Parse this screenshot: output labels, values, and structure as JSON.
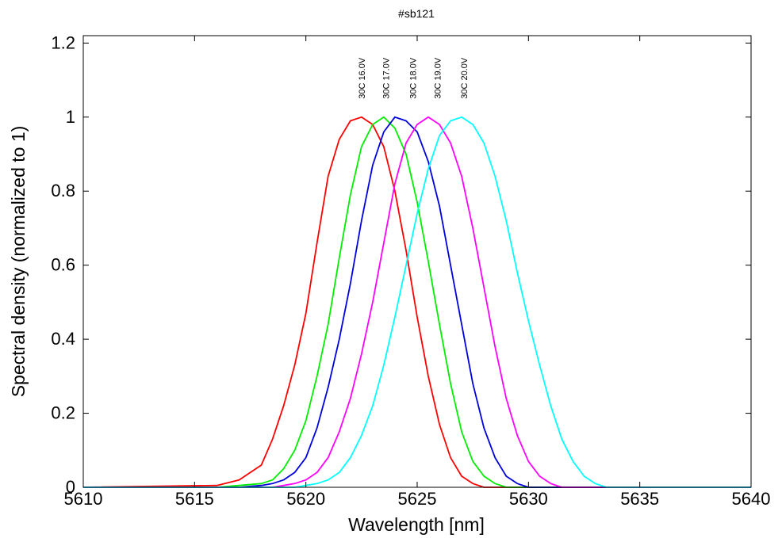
{
  "chart_data": {
    "type": "line",
    "title": "#sb121",
    "xlabel": "Wavelength [nm]",
    "ylabel": "Spectral density (normalized to 1)",
    "xlim": [
      5610,
      5640
    ],
    "ylim": [
      0,
      1.22
    ],
    "xticks": [
      5610,
      5615,
      5620,
      5625,
      5630,
      5635,
      5640
    ],
    "xtick_labels": [
      "5610",
      "5615",
      "5620",
      "5625",
      "5630",
      "5635",
      "5640"
    ],
    "yticks": [
      0,
      0.2,
      0.4,
      0.6,
      0.8,
      1,
      1.2
    ],
    "ytick_labels": [
      "0",
      "0.2",
      "0.4",
      "0.6",
      "0.8",
      "1",
      "1.2"
    ],
    "grid": false,
    "legend": "none",
    "x": [
      5610,
      5616,
      5617,
      5618,
      5618.5,
      5619,
      5619.5,
      5620,
      5620.5,
      5621,
      5621.5,
      5622,
      5622.5,
      5623,
      5623.5,
      5624,
      5624.5,
      5625,
      5625.5,
      5626,
      5626.5,
      5627,
      5627.5,
      5628,
      5628.5,
      5629,
      5629.5,
      5630,
      5630.5,
      5631,
      5631.5,
      5632,
      5632.5,
      5633,
      5633.5,
      5634,
      5640
    ],
    "series": [
      {
        "name": "30C 16.0V",
        "color": "#ff0000",
        "label_x": 5622.5,
        "values": [
          0,
          0.005,
          0.02,
          0.06,
          0.13,
          0.22,
          0.33,
          0.47,
          0.66,
          0.84,
          0.94,
          0.99,
          1.0,
          0.98,
          0.92,
          0.8,
          0.64,
          0.46,
          0.3,
          0.17,
          0.08,
          0.03,
          0.01,
          0,
          0,
          0,
          0,
          0,
          0,
          0,
          0,
          0,
          0,
          0,
          0,
          0,
          0
        ]
      },
      {
        "name": "30C 17.0V",
        "color": "#00ee00",
        "label_x": 5623.6,
        "values": [
          0,
          0,
          0.005,
          0.01,
          0.02,
          0.05,
          0.1,
          0.18,
          0.3,
          0.44,
          0.62,
          0.79,
          0.92,
          0.98,
          1.0,
          0.97,
          0.9,
          0.77,
          0.61,
          0.44,
          0.28,
          0.15,
          0.07,
          0.03,
          0.01,
          0,
          0,
          0,
          0,
          0,
          0,
          0,
          0,
          0,
          0,
          0,
          0
        ]
      },
      {
        "name": "30C 18.0V",
        "color": "#0000dd",
        "label_x": 5624.8,
        "values": [
          0,
          0,
          0,
          0.005,
          0.01,
          0.02,
          0.04,
          0.08,
          0.16,
          0.27,
          0.4,
          0.55,
          0.72,
          0.87,
          0.96,
          1.0,
          0.99,
          0.96,
          0.88,
          0.76,
          0.6,
          0.44,
          0.28,
          0.16,
          0.08,
          0.03,
          0.01,
          0,
          0,
          0,
          0,
          0,
          0,
          0,
          0,
          0,
          0
        ]
      },
      {
        "name": "30C 19.0V",
        "color": "#ff00ff",
        "label_x": 5625.9,
        "values": [
          0,
          0,
          0,
          0,
          0,
          0.005,
          0.01,
          0.02,
          0.04,
          0.08,
          0.15,
          0.24,
          0.36,
          0.5,
          0.66,
          0.82,
          0.93,
          0.98,
          1.0,
          0.98,
          0.93,
          0.84,
          0.7,
          0.54,
          0.38,
          0.24,
          0.14,
          0.07,
          0.03,
          0.01,
          0,
          0,
          0,
          0,
          0,
          0,
          0
        ]
      },
      {
        "name": "30C 20.0V",
        "color": "#00ffff",
        "label_x": 5627.1,
        "values": [
          0,
          0,
          0,
          0,
          0,
          0,
          0,
          0.005,
          0.01,
          0.02,
          0.04,
          0.08,
          0.14,
          0.22,
          0.33,
          0.46,
          0.6,
          0.74,
          0.86,
          0.95,
          0.99,
          1.0,
          0.98,
          0.93,
          0.84,
          0.72,
          0.58,
          0.45,
          0.33,
          0.22,
          0.13,
          0.07,
          0.03,
          0.01,
          0,
          0,
          0
        ]
      }
    ]
  }
}
